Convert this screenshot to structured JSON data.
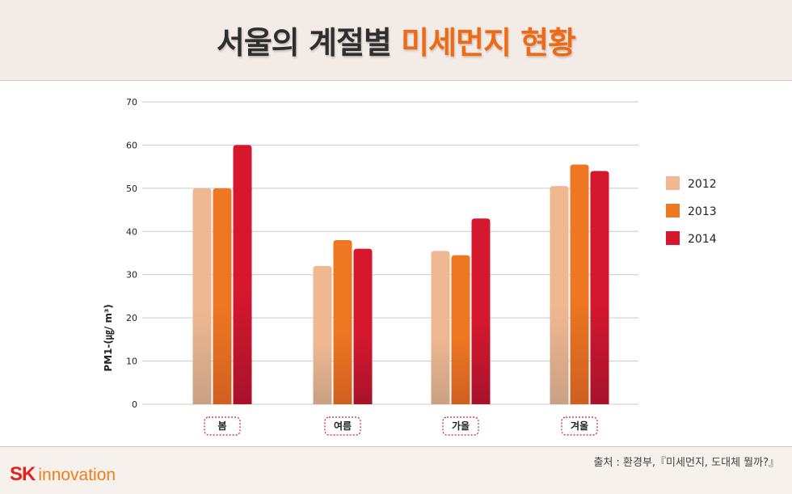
{
  "header": {
    "title_main": "서울의 계절별",
    "title_accent": "미세먼지 현황"
  },
  "chart_data": {
    "type": "bar",
    "title": "서울의 계절별 미세먼지 현황",
    "ylabel": "PM1-(㎍/ m³)",
    "xlabel": "",
    "ylim": [
      0,
      70
    ],
    "yticks": [
      "0",
      "10",
      "20",
      "30",
      "40",
      "50",
      "60",
      "70"
    ],
    "categories": [
      "봄",
      "여름",
      "가을",
      "겨울"
    ],
    "series": [
      {
        "name": "2012",
        "values": [
          50,
          32,
          35.5,
          50.5
        ],
        "color": "#f0b891",
        "color_bottom": "#c9a184"
      },
      {
        "name": "2013",
        "values": [
          50,
          38,
          34.5,
          55.5
        ],
        "color": "#ee7722",
        "color_bottom": "#cf6020"
      },
      {
        "name": "2014",
        "values": [
          60,
          36,
          43,
          54
        ],
        "color": "#d6182f",
        "color_bottom": "#a8122b"
      }
    ],
    "legend_position": "right",
    "grid": true
  },
  "footer": {
    "source": "출처 : 환경부,『미세먼지, 도대체 뭘까?』",
    "logo_sk": "SK",
    "logo_text": "innovation"
  }
}
